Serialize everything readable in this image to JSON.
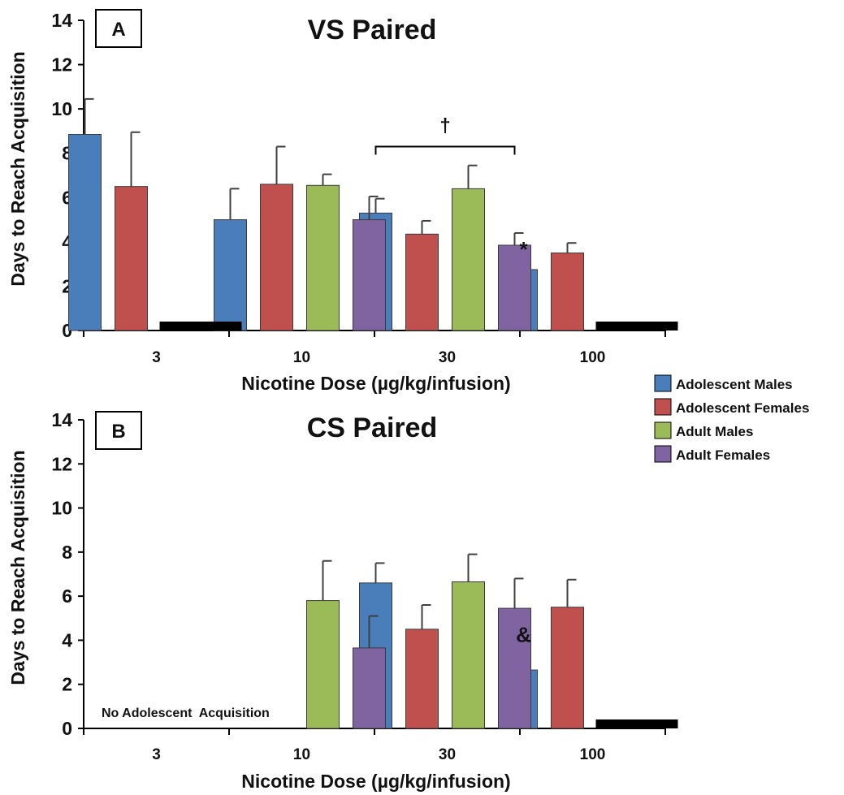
{
  "colors": {
    "Adolescent Males": "#4a7ebb",
    "Adolescent Females": "#c0504d",
    "Adult Males": "#9bbb59",
    "Adult Females": "#8064a2",
    "axis": "#000000",
    "error_bar": "#404040"
  },
  "legend": {
    "placement": "right, between panels",
    "items": [
      "Adolescent Males",
      "Adolescent Females",
      "Adult Males",
      "Adult Females"
    ]
  },
  "chart_data": [
    {
      "type": "bar",
      "panel": "A",
      "title": "VS Paired",
      "xlabel": "Nicotine Dose (µg/kg/infusion)",
      "ylabel": "Days to Reach Acquisition",
      "ylim": [
        0,
        14
      ],
      "yticks": [
        0,
        2,
        4,
        6,
        8,
        10,
        12,
        14
      ],
      "categories": [
        "3",
        "10",
        "30",
        "100"
      ],
      "series": [
        {
          "name": "Adolescent Males",
          "values": [
            8.85,
            5.0,
            5.3,
            2.75
          ],
          "errors": [
            1.6,
            1.4,
            0.65,
            0.65
          ]
        },
        {
          "name": "Adolescent Females",
          "values": [
            6.5,
            6.6,
            4.35,
            3.5
          ],
          "errors": [
            2.45,
            1.7,
            0.6,
            0.45
          ]
        },
        {
          "name": "Adult Males",
          "values": [
            null,
            6.55,
            6.4,
            null
          ],
          "errors": [
            null,
            0.5,
            1.05,
            null
          ]
        },
        {
          "name": "Adult Females",
          "values": [
            null,
            5.0,
            3.85,
            null
          ],
          "errors": [
            null,
            1.05,
            0.55,
            null
          ]
        }
      ],
      "no_acquisition_bars": [
        {
          "category": "3",
          "series": [
            "Adult Males",
            "Adult Females"
          ]
        },
        {
          "category": "100",
          "series": [
            "Adult Males",
            "Adult Females"
          ]
        }
      ],
      "annotations": [
        {
          "text": "†",
          "type": "bracket",
          "category": "30",
          "from_series": "Adolescent Males",
          "to_series": "Adult Females",
          "y": 8.3
        },
        {
          "text": "*",
          "category": "100",
          "series": "Adolescent Males",
          "y": 3.7
        }
      ],
      "notes": []
    },
    {
      "type": "bar",
      "panel": "B",
      "title": "CS Paired",
      "xlabel": "Nicotine Dose (µg/kg/infusion)",
      "ylabel": "Days to Reach Acquisition",
      "ylim": [
        0,
        14
      ],
      "yticks": [
        0,
        2,
        4,
        6,
        8,
        10,
        12,
        14
      ],
      "categories": [
        "3",
        "10",
        "30",
        "100"
      ],
      "series": [
        {
          "name": "Adolescent Males",
          "values": [
            null,
            null,
            6.6,
            2.65
          ],
          "errors": [
            null,
            null,
            0.9,
            0.9
          ]
        },
        {
          "name": "Adolescent Females",
          "values": [
            null,
            null,
            4.5,
            5.5
          ],
          "errors": [
            null,
            null,
            1.1,
            1.25
          ]
        },
        {
          "name": "Adult Males",
          "values": [
            null,
            5.8,
            6.65,
            null
          ],
          "errors": [
            null,
            1.8,
            1.25,
            null
          ]
        },
        {
          "name": "Adult Females",
          "values": [
            null,
            3.65,
            5.45,
            null
          ],
          "errors": [
            null,
            1.45,
            1.35,
            null
          ]
        }
      ],
      "no_acquisition_bars": [
        {
          "category": "100",
          "series": [
            "Adult Males",
            "Adult Females"
          ]
        }
      ],
      "annotations": [
        {
          "text": "&",
          "category": "100",
          "series": "Adolescent Males",
          "y": 4.3
        }
      ],
      "notes": [
        "No Adolescent  Acquisition"
      ]
    }
  ]
}
